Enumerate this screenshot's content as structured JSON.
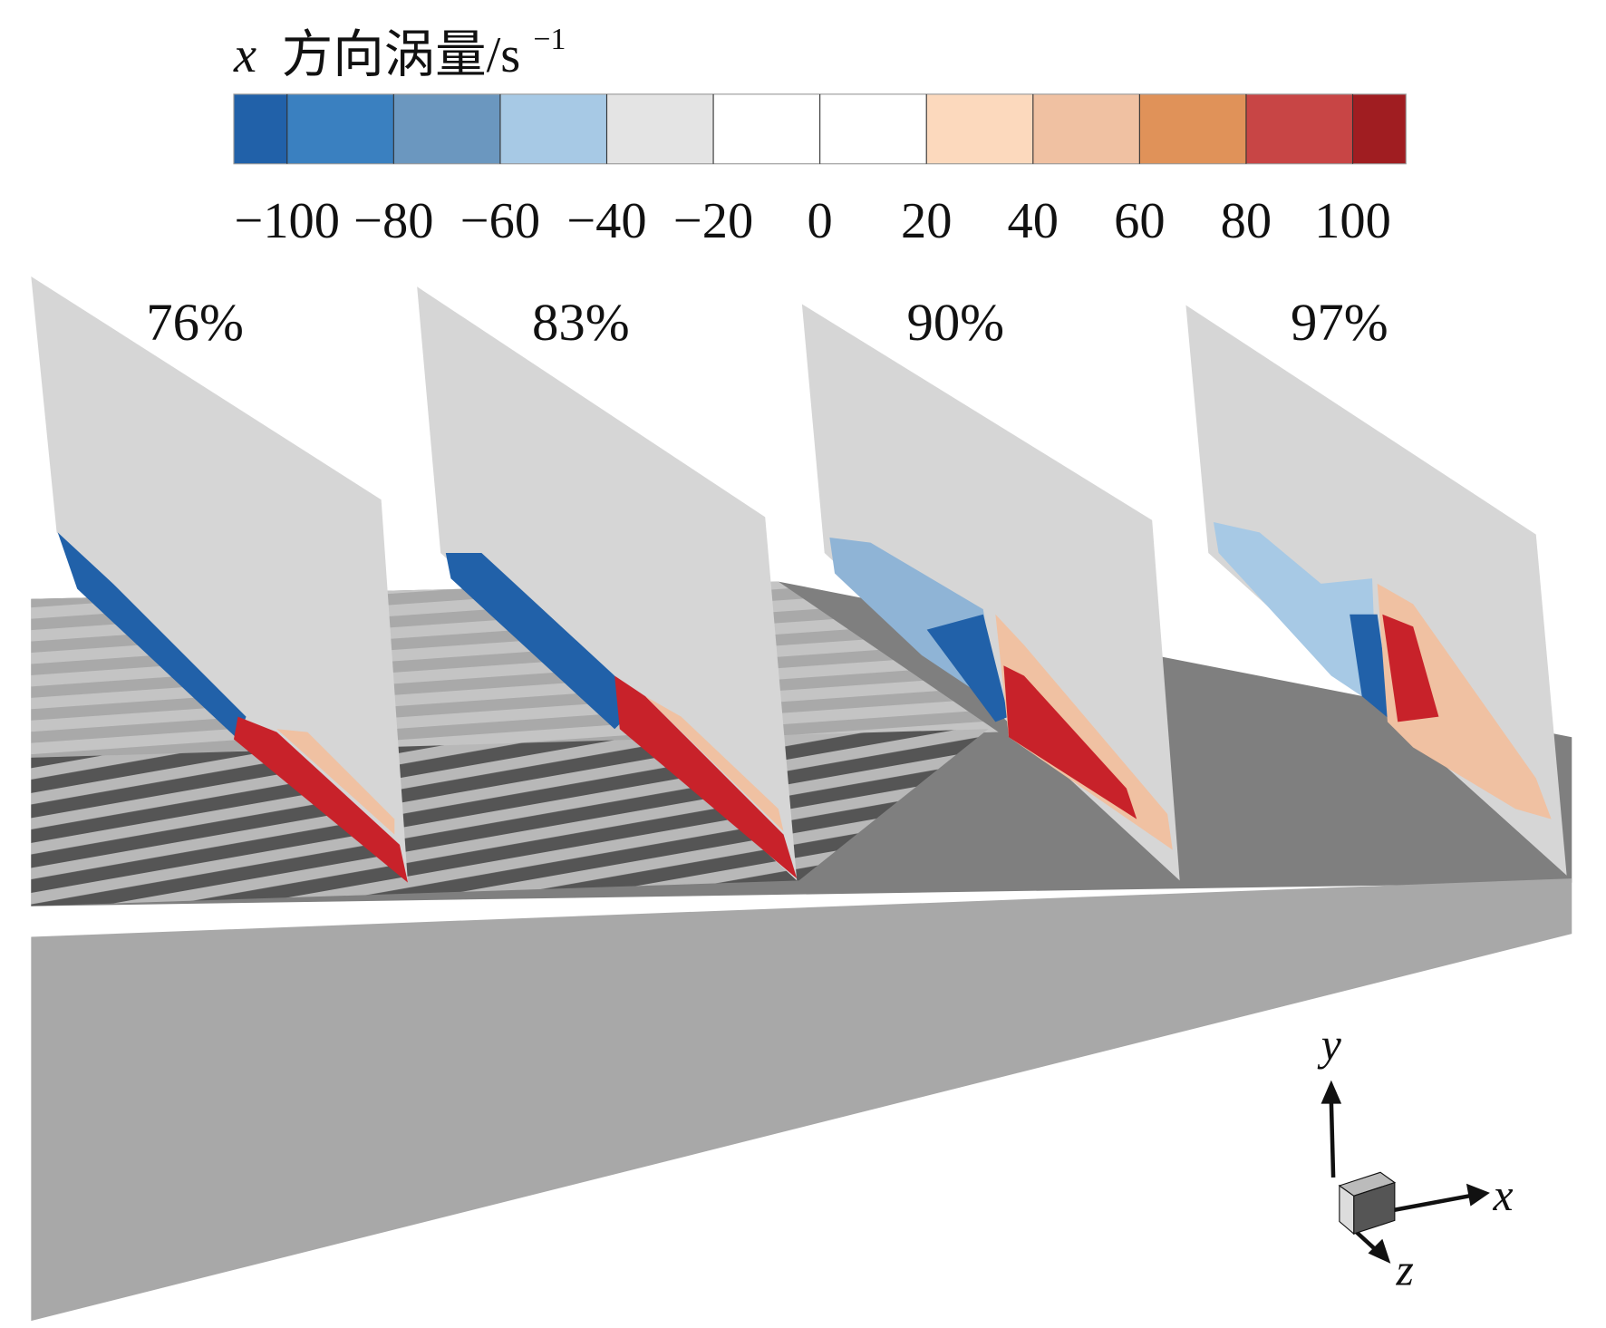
{
  "colorbar": {
    "title": {
      "variable": "x",
      "text": "方向涡量/s",
      "exponent": "−1"
    },
    "range": [
      -110,
      110
    ],
    "ticks": [
      {
        "value": -100,
        "label": "−100"
      },
      {
        "value": -80,
        "label": "−80"
      },
      {
        "value": -60,
        "label": "−60"
      },
      {
        "value": -40,
        "label": "−40"
      },
      {
        "value": -20,
        "label": "−20"
      },
      0,
      20,
      40,
      60,
      80,
      100
    ],
    "colors": [
      "#2161a9",
      "#3a80c0",
      "#6b97bf",
      "#a7c9e5",
      "#e4e4e4",
      "#ffffff",
      "#ffffff",
      "#fcd9bd",
      "#f0c1a2",
      "#e09259",
      "#c84545",
      "#a01d21"
    ]
  },
  "planes": [
    {
      "label": "76%"
    },
    {
      "label": "83%"
    },
    {
      "label": "90%"
    },
    {
      "label": "97%"
    }
  ],
  "axes": {
    "x": "x",
    "y": "y",
    "z": "z"
  }
}
